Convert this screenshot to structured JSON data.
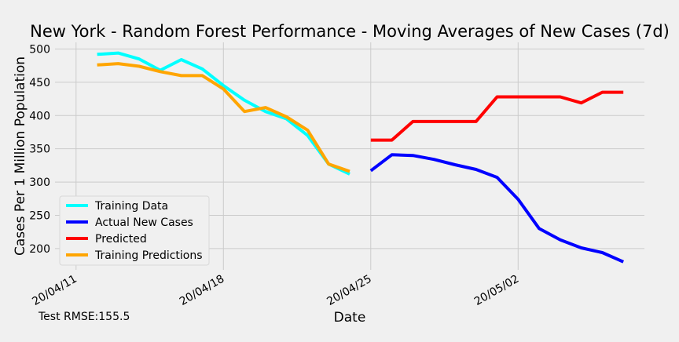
{
  "chart_data": {
    "type": "line",
    "title": "New York - Random Forest Performance - Moving Averages of New Cases (7d)",
    "xlabel": "Date",
    "ylabel": "Cases Per 1 Million Population",
    "x_ticks": [
      "20/04/11",
      "20/04/18",
      "20/04/25",
      "20/05/02"
    ],
    "y_ticks": [
      200,
      250,
      300,
      350,
      400,
      450,
      500
    ],
    "xlim": [
      "2020-04-10",
      "2020-05-08"
    ],
    "ylim": [
      168,
      510
    ],
    "grid": true,
    "legend_position": "lower-left",
    "annotation": "Test RMSE:155.5",
    "series": [
      {
        "name": "Training Data",
        "color": "#00ffff",
        "x": [
          "2020-04-12",
          "2020-04-13",
          "2020-04-14",
          "2020-04-15",
          "2020-04-16",
          "2020-04-17",
          "2020-04-18",
          "2020-04-19",
          "2020-04-20",
          "2020-04-21",
          "2020-04-22",
          "2020-04-23",
          "2020-04-24"
        ],
        "y": [
          492,
          494,
          485,
          468,
          484,
          470,
          445,
          423,
          406,
          395,
          370,
          327,
          312
        ]
      },
      {
        "name": "Actual New Cases",
        "color": "#0000ff",
        "x": [
          "2020-04-25",
          "2020-04-26",
          "2020-04-27",
          "2020-04-28",
          "2020-04-29",
          "2020-04-30",
          "2020-05-01",
          "2020-05-02",
          "2020-05-03",
          "2020-05-04",
          "2020-05-05",
          "2020-05-06",
          "2020-05-07"
        ],
        "y": [
          317,
          341,
          340,
          334,
          326,
          319,
          307,
          274,
          230,
          213,
          201,
          194,
          180
        ]
      },
      {
        "name": "Predicted",
        "color": "#ff0000",
        "x": [
          "2020-04-25",
          "2020-04-26",
          "2020-04-27",
          "2020-04-28",
          "2020-04-29",
          "2020-04-30",
          "2020-05-01",
          "2020-05-02",
          "2020-05-03",
          "2020-05-04",
          "2020-05-05",
          "2020-05-06",
          "2020-05-07"
        ],
        "y": [
          363,
          363,
          391,
          391,
          391,
          391,
          428,
          428,
          428,
          428,
          419,
          435,
          435
        ]
      },
      {
        "name": "Training Predictions",
        "color": "#ffa500",
        "x": [
          "2020-04-12",
          "2020-04-13",
          "2020-04-14",
          "2020-04-15",
          "2020-04-16",
          "2020-04-17",
          "2020-04-18",
          "2020-04-19",
          "2020-04-20",
          "2020-04-21",
          "2020-04-22",
          "2020-04-23",
          "2020-04-24"
        ],
        "y": [
          476,
          478,
          474,
          466,
          460,
          460,
          440,
          406,
          412,
          398,
          378,
          327,
          316
        ]
      }
    ]
  }
}
